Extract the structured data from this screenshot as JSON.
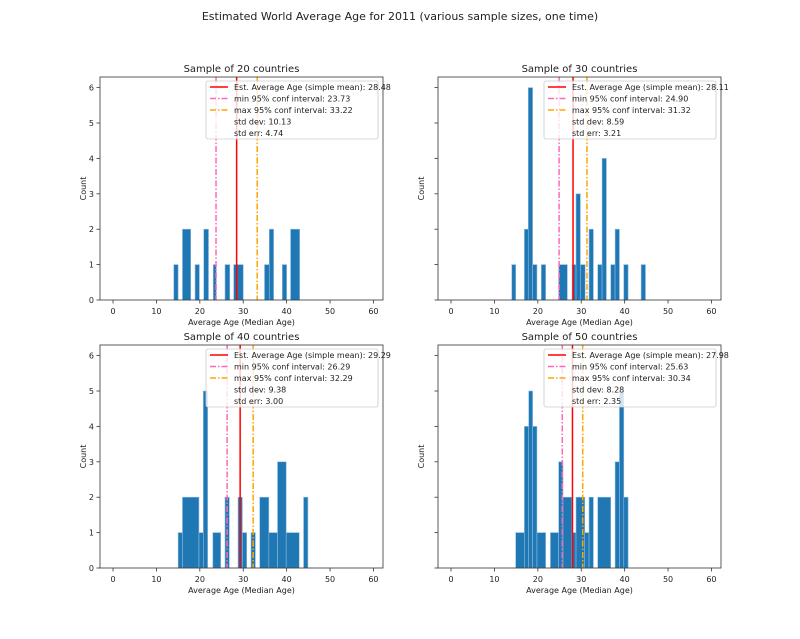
{
  "chart_data": [
    {
      "type": "bar",
      "title": "Sample of 20 countries",
      "xlabel": "Average Age (Median Age)",
      "ylabel": "Count",
      "xlim": [
        -3,
        62.2
      ],
      "ylim": [
        0,
        6.3
      ],
      "xticks": [
        "0",
        "10",
        "20",
        "30",
        "40",
        "50",
        "60"
      ],
      "yticks": [
        "0",
        "1",
        "2",
        "3",
        "4",
        "5",
        "6"
      ],
      "bins": [
        [
          14,
          15,
          1
        ],
        [
          16,
          17.9,
          2
        ],
        [
          18.9,
          19.9,
          1
        ],
        [
          20.9,
          22,
          2
        ],
        [
          23.1,
          23.8,
          1
        ],
        [
          25.8,
          26.9,
          1
        ],
        [
          27.8,
          30,
          1
        ],
        [
          34.9,
          36,
          1
        ],
        [
          36,
          37,
          2
        ],
        [
          39,
          40,
          1
        ],
        [
          40.9,
          43,
          2
        ]
      ],
      "mean": 28.48,
      "ci_min": 23.73,
      "ci_max": 33.22,
      "legend": [
        "Est. Average Age (simple mean): 28.48",
        "min 95% conf interval: 23.73",
        "max 95% conf interval: 33.22",
        "std dev: 10.13",
        "std err: 4.74"
      ]
    },
    {
      "type": "bar",
      "title": "Sample of 30 countries",
      "xlabel": "Average Age (Median Age)",
      "ylabel": "Count",
      "xlim": [
        -3,
        62.2
      ],
      "ylim": [
        0,
        6.3
      ],
      "xticks": [
        "0",
        "10",
        "20",
        "30",
        "40",
        "50",
        "60"
      ],
      "yticks": [],
      "bins": [
        [
          14,
          14.9,
          1
        ],
        [
          16.9,
          17.8,
          2
        ],
        [
          17.8,
          18.8,
          6
        ],
        [
          18.8,
          19.8,
          1
        ],
        [
          20.8,
          21.8,
          1
        ],
        [
          24.8,
          26.8,
          1
        ],
        [
          27.9,
          28.8,
          1
        ],
        [
          28.8,
          29.8,
          3
        ],
        [
          29.8,
          30.9,
          1
        ],
        [
          31.8,
          32.8,
          2
        ],
        [
          33.8,
          34.8,
          1
        ],
        [
          34.8,
          35.8,
          4
        ],
        [
          36.8,
          37.8,
          1
        ],
        [
          37.8,
          38.8,
          2
        ],
        [
          39.8,
          40.8,
          1
        ],
        [
          43.8,
          44.8,
          1
        ]
      ],
      "mean": 28.11,
      "ci_min": 24.9,
      "ci_max": 31.32,
      "legend": [
        "Est. Average Age (simple mean): 28.11",
        "min 95% conf interval: 24.90",
        "max 95% conf interval: 31.32",
        "std dev: 8.59",
        "std err: 3.21"
      ]
    },
    {
      "type": "bar",
      "title": "Sample of 40 countries",
      "xlabel": "Average Age (Median Age)",
      "ylabel": "Count",
      "xlim": [
        -3,
        62.2
      ],
      "ylim": [
        0,
        6.3
      ],
      "xticks": [
        "0",
        "10",
        "20",
        "30",
        "40",
        "50",
        "60"
      ],
      "yticks": [
        "0",
        "1",
        "2",
        "3",
        "4",
        "5",
        "6"
      ],
      "bins": [
        [
          15,
          16,
          1
        ],
        [
          16,
          19.8,
          2
        ],
        [
          19.8,
          20.8,
          1
        ],
        [
          20.8,
          21.8,
          5
        ],
        [
          23,
          24.8,
          1
        ],
        [
          25.8,
          26.8,
          2
        ],
        [
          28.8,
          29.8,
          2
        ],
        [
          29.8,
          30.8,
          1
        ],
        [
          31.8,
          32.8,
          1
        ],
        [
          33.8,
          35.9,
          2
        ],
        [
          35.9,
          37.9,
          1
        ],
        [
          37.9,
          39.9,
          3
        ],
        [
          39.9,
          42.9,
          1
        ],
        [
          43.9,
          44.9,
          2
        ]
      ],
      "mean": 29.29,
      "ci_min": 26.29,
      "ci_max": 32.29,
      "legend": [
        "Est. Average Age (simple mean): 29.29",
        "min 95% conf interval: 26.29",
        "max 95% conf interval: 32.29",
        "std dev: 9.38",
        "std err: 3.00"
      ]
    },
    {
      "type": "bar",
      "title": "Sample of 50 countries",
      "xlabel": "Average Age (Median Age)",
      "ylabel": "Count",
      "xlim": [
        -3,
        62.2
      ],
      "ylim": [
        0,
        6.3
      ],
      "xticks": [
        "0",
        "10",
        "20",
        "30",
        "40",
        "50",
        "60"
      ],
      "yticks": [],
      "bins": [
        [
          14.9,
          16.9,
          1
        ],
        [
          16.9,
          17.9,
          4
        ],
        [
          17.9,
          18.8,
          5
        ],
        [
          18.8,
          19.8,
          4
        ],
        [
          19.8,
          21.8,
          1
        ],
        [
          22.9,
          24.8,
          1
        ],
        [
          24.8,
          25.8,
          3
        ],
        [
          25.8,
          27.8,
          2
        ],
        [
          27.8,
          28.8,
          1
        ],
        [
          28.8,
          30.8,
          2
        ],
        [
          30.8,
          31.8,
          1
        ],
        [
          31.8,
          32.8,
          2
        ],
        [
          33.8,
          36.8,
          2
        ],
        [
          37.8,
          38.8,
          3
        ],
        [
          38.8,
          39.8,
          5
        ],
        [
          39.8,
          40.8,
          2
        ]
      ],
      "mean": 27.98,
      "ci_min": 25.63,
      "ci_max": 30.34,
      "legend": [
        "Est. Average Age (simple mean): 27.98",
        "min 95% conf interval: 25.63",
        "max 95% conf interval: 30.34",
        "std dev: 8.28",
        "std err: 2.35"
      ]
    }
  ],
  "suptitle": "Estimated World Average Age for 2011 (various sample sizes, one time)",
  "colors": {
    "bars": "#1f77b4",
    "mean": "#ff0000",
    "ci_min": "#ff69b4",
    "ci_max": "#ffa500"
  }
}
